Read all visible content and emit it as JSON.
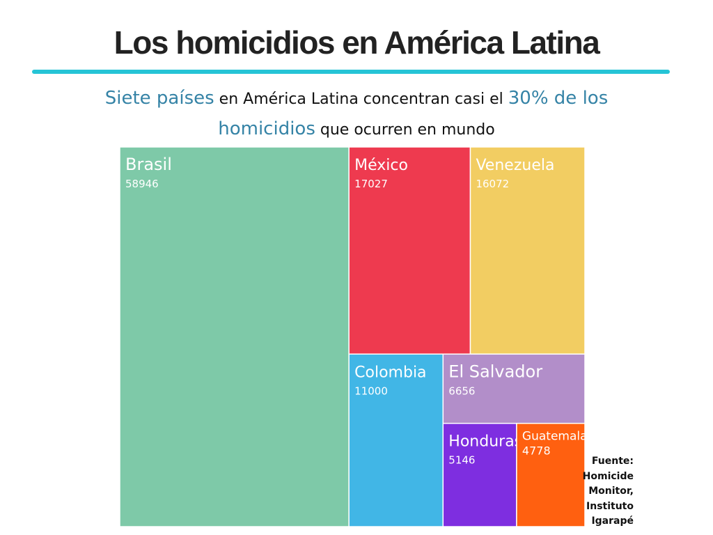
{
  "header": {
    "title": "Los homicidios en América Latina",
    "rule_color": "#25c4d6"
  },
  "subtitle": {
    "part1": "Siete países",
    "part2": " en América Latina concentran casi el ",
    "part3": "30% de los homicidios",
    "part4": " que ocurren en mundo",
    "highlight_color": "#3583a6"
  },
  "chart_data": {
    "type": "treemap",
    "series": [
      {
        "name": "Brasil",
        "value": 58946,
        "color": "#7ec9a8"
      },
      {
        "name": "México",
        "value": 17027,
        "color": "#ee3a4f"
      },
      {
        "name": "Venezuela",
        "value": 16072,
        "color": "#f2cd62"
      },
      {
        "name": "Colombia",
        "value": 11000,
        "color": "#41b6e6"
      },
      {
        "name": "El Salvador",
        "value": 6656,
        "color": "#b28ec9"
      },
      {
        "name": "Honduras",
        "value": 5146,
        "color": "#7e2ee0"
      },
      {
        "name": "Guatemala",
        "value": 4778,
        "color": "#ff6010"
      }
    ]
  },
  "source": {
    "lines": [
      "Fuente:",
      "Homicide",
      "Monitor,",
      "Instituto",
      "Igarapé"
    ]
  }
}
